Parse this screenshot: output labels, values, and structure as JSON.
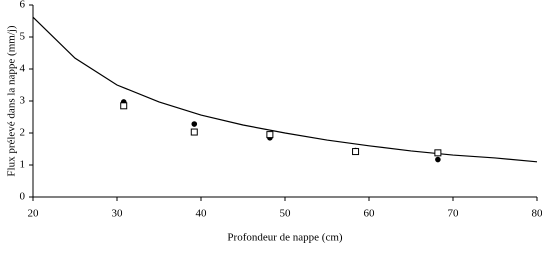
{
  "chart_data": {
    "type": "scatter",
    "x_label": "Profondeur de nappe (cm)",
    "y_label": "Flux prélevé dans la nappe (mm/j)",
    "xlim": [
      20,
      80
    ],
    "xticks": [
      20,
      30,
      40,
      50,
      60,
      70,
      80
    ],
    "ylim": [
      0,
      6
    ],
    "yticks": [
      0,
      1,
      2,
      3,
      4,
      5,
      6
    ],
    "grid": false,
    "series": [
      {
        "kind": "line",
        "color": "#000000",
        "x": [
          20,
          25,
          30,
          35,
          40,
          45,
          50,
          55,
          60,
          65,
          70,
          75,
          80
        ],
        "values": [
          5.62,
          4.34,
          3.5,
          2.97,
          2.56,
          2.25,
          2.0,
          1.78,
          1.6,
          1.44,
          1.31,
          1.22,
          1.1
        ]
      },
      {
        "kind": "marker",
        "marker": "circle",
        "color": "#000000",
        "x": [
          30.8,
          39.2,
          48.2,
          58.4,
          68.2
        ],
        "values": [
          2.97,
          2.28,
          1.85,
          1.45,
          1.17
        ]
      },
      {
        "kind": "marker",
        "marker": "square",
        "color": "#000000",
        "x": [
          30.8,
          39.2,
          48.2,
          58.4,
          68.2
        ],
        "values": [
          2.85,
          2.03,
          1.95,
          1.42,
          1.38
        ]
      }
    ]
  }
}
